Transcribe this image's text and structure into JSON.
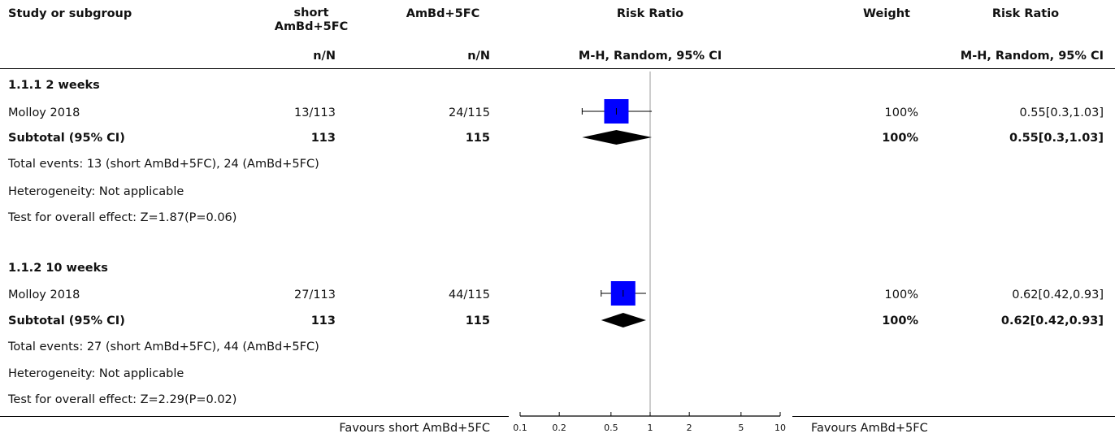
{
  "header": {
    "study": "Study or subgroup",
    "group1": "short AmBd+5FC",
    "group2": "AmBd+5FC",
    "risk_ratio": "Risk Ratio",
    "weight": "Weight",
    "risk_ratio2": "Risk Ratio",
    "nN1": "n/N",
    "nN2": "n/N",
    "method": "M-H, Random, 95% CI",
    "method2": "M-H, Random, 95% CI"
  },
  "subgroups": [
    {
      "title": "1.1.1 2 weeks",
      "study": {
        "name": "Molloy 2018",
        "g1": "13/113",
        "g2": "24/115",
        "weight": "100%",
        "ci_text": "0.55[0.3,1.03]"
      },
      "subtotal": {
        "label": "Subtotal (95% CI)",
        "n1": "113",
        "n2": "115",
        "weight": "100%",
        "ci_text": "0.55[0.3,1.03]"
      },
      "total_events": "Total events: 13 (short AmBd+5FC), 24 (AmBd+5FC)",
      "heterogeneity": "Heterogeneity: Not applicable",
      "overall_effect": "Test for overall effect: Z=1.87(P=0.06)"
    },
    {
      "title": "1.1.2 10 weeks",
      "study": {
        "name": "Molloy 2018",
        "g1": "27/113",
        "g2": "44/115",
        "weight": "100%",
        "ci_text": "0.62[0.42,0.93]"
      },
      "subtotal": {
        "label": "Subtotal (95% CI)",
        "n1": "113",
        "n2": "115",
        "weight": "100%",
        "ci_text": "0.62[0.42,0.93]"
      },
      "total_events": "Total events: 27 (short AmBd+5FC), 44 (AmBd+5FC)",
      "heterogeneity": "Heterogeneity: Not applicable",
      "overall_effect": "Test for overall effect: Z=2.29(P=0.02)"
    }
  ],
  "footer": {
    "favours_left": "Favours short AmBd+5FC",
    "favours_right": "Favours AmBd+5FC"
  },
  "chart_data": {
    "type": "forest",
    "scale": "log",
    "xlim": [
      0.1,
      10
    ],
    "null_line": 1,
    "ticks": [
      0.1,
      0.2,
      0.5,
      1,
      2,
      5,
      10
    ],
    "tick_labels": [
      "0.1",
      "0.2",
      "0.5",
      "1",
      "2",
      "5",
      "10"
    ],
    "colors": {
      "box": "#0000ff",
      "diamond": "#000000",
      "axis": "#000000",
      "null_line": "#999999"
    },
    "studies": [
      {
        "subgroup": 0,
        "rr": 0.55,
        "lo": 0.3,
        "hi": 1.03,
        "weight": 100
      },
      {
        "subgroup": 1,
        "rr": 0.62,
        "lo": 0.42,
        "hi": 0.93,
        "weight": 100
      }
    ],
    "subtotals": [
      {
        "subgroup": 0,
        "rr": 0.55,
        "lo": 0.3,
        "hi": 1.03
      },
      {
        "subgroup": 1,
        "rr": 0.62,
        "lo": 0.42,
        "hi": 0.93
      }
    ]
  }
}
